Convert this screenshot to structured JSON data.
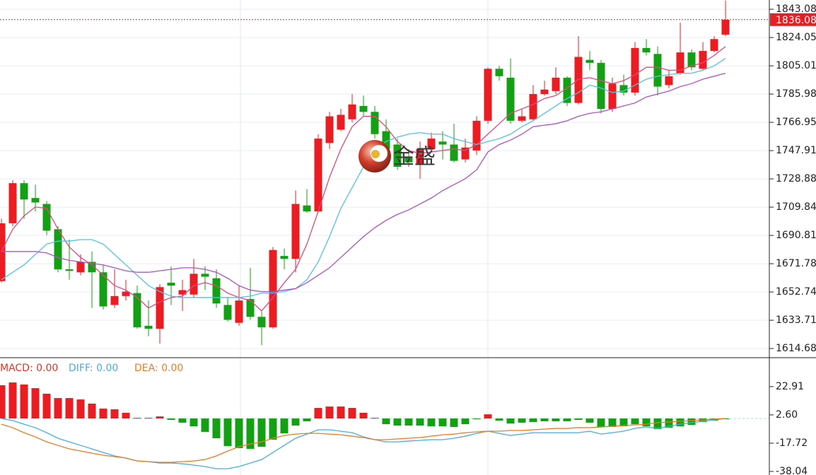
{
  "chart_data": [
    {
      "type": "candlestick",
      "ylim": [
        1609.0,
        1849.3
      ],
      "yticks": [
        1843.08,
        1824.05,
        1805.01,
        1785.98,
        1766.95,
        1747.91,
        1728.88,
        1709.84,
        1690.81,
        1671.78,
        1652.74,
        1633.71,
        1614.68
      ],
      "grid": true,
      "up_color": "#eb1c22",
      "down_color": "#14a014",
      "open": [
        1660,
        1699,
        1726,
        1716,
        1712,
        1695,
        1668,
        1666,
        1673,
        1666,
        1644,
        1650,
        1652,
        1630,
        1628,
        1659,
        1651,
        1651,
        1665,
        1662,
        1644,
        1632,
        1648,
        1636,
        1629,
        1677,
        1675,
        1711,
        1707,
        1753,
        1762,
        1769,
        1778,
        1774,
        1761,
        1752,
        1744,
        1739,
        1749,
        1754,
        1752,
        1742,
        1748,
        1768,
        1803,
        1797,
        1768,
        1769,
        1786,
        1788,
        1797,
        1780,
        1809,
        1807,
        1776,
        1792,
        1787,
        1817,
        1813,
        1792,
        1800,
        1814,
        1803,
        1815,
        1826
      ],
      "high": [
        1702,
        1728,
        1728,
        1725,
        1714,
        1697,
        1688,
        1678,
        1680,
        1671,
        1668,
        1661,
        1657,
        1647,
        1658,
        1670,
        1661,
        1675,
        1670,
        1668,
        1649,
        1657,
        1669,
        1640,
        1683,
        1682,
        1721,
        1722,
        1759,
        1774,
        1776,
        1786,
        1785,
        1778,
        1769,
        1756,
        1749,
        1754,
        1760,
        1761,
        1766,
        1756,
        1771,
        1804,
        1805,
        1810,
        1776,
        1792,
        1795,
        1804,
        1798,
        1825,
        1815,
        1809,
        1797,
        1799,
        1821,
        1823,
        1818,
        1802,
        1834,
        1816,
        1821,
        1825,
        1849
      ],
      "low": [
        1659,
        1697,
        1702,
        1707,
        1691,
        1666,
        1661,
        1664,
        1642,
        1641,
        1642,
        1647,
        1628,
        1623,
        1618,
        1644,
        1640,
        1649,
        1654,
        1642,
        1633,
        1630,
        1634,
        1617,
        1628,
        1668,
        1666,
        1706,
        1706,
        1749,
        1761,
        1767,
        1771,
        1756,
        1742,
        1735,
        1737,
        1729,
        1747,
        1742,
        1740,
        1740,
        1745,
        1766,
        1795,
        1766,
        1767,
        1768,
        1785,
        1786,
        1778,
        1779,
        1802,
        1773,
        1774,
        1785,
        1785,
        1812,
        1785,
        1790,
        1799,
        1802,
        1802,
        1814,
        1825
      ],
      "close": [
        1699,
        1726,
        1715,
        1713,
        1694,
        1668,
        1667,
        1673,
        1666,
        1643,
        1650,
        1653,
        1629,
        1628,
        1656,
        1657,
        1654,
        1665,
        1663,
        1645,
        1634,
        1647,
        1636,
        1629,
        1681,
        1675,
        1712,
        1707,
        1756,
        1771,
        1772,
        1779,
        1774,
        1759,
        1749,
        1737,
        1740,
        1749,
        1756,
        1752,
        1741,
        1750,
        1768,
        1803,
        1798,
        1768,
        1771,
        1786,
        1789,
        1797,
        1780,
        1811,
        1807,
        1776,
        1793,
        1787,
        1817,
        1814,
        1791,
        1798,
        1814,
        1804,
        1815,
        1823,
        1836
      ],
      "lines": [
        {
          "color": "#e2477d",
          "values": [
            1680,
            1695,
            1704,
            1710,
            1709,
            1695,
            1683,
            1676,
            1671,
            1664,
            1657,
            1654,
            1649,
            1642,
            1646,
            1649,
            1650,
            1657,
            1659,
            1657,
            1652,
            1649,
            1647,
            1640,
            1649,
            1659,
            1668,
            1685,
            1707,
            1730,
            1749,
            1764,
            1771,
            1771,
            1764,
            1754,
            1748,
            1746,
            1747,
            1748,
            1749,
            1748,
            1752,
            1759,
            1766,
            1773,
            1776,
            1779,
            1783,
            1785,
            1790,
            1796,
            1797,
            1795,
            1793,
            1795,
            1799,
            1804,
            1804,
            1802,
            1802,
            1805,
            1807,
            1812,
            1818
          ]
        },
        {
          "color": "#4fc4e4",
          "values": [
            1661,
            1666,
            1671,
            1678,
            1685,
            1687,
            1687,
            1688,
            1688,
            1685,
            1678,
            1671,
            1664,
            1657,
            1653,
            1650,
            1649,
            1649,
            1649,
            1649,
            1649,
            1649,
            1650,
            1652,
            1652,
            1653,
            1655,
            1661,
            1673,
            1690,
            1709,
            1723,
            1737,
            1749,
            1754,
            1757,
            1759,
            1760,
            1759,
            1759,
            1756,
            1754,
            1752,
            1754,
            1756,
            1759,
            1764,
            1768,
            1773,
            1778,
            1783,
            1787,
            1792,
            1790,
            1787,
            1788,
            1792,
            1796,
            1798,
            1799,
            1800,
            1800,
            1802,
            1805,
            1810
          ]
        },
        {
          "color": "#b150c6",
          "values": [
            1680,
            1680,
            1680,
            1680,
            1679,
            1676,
            1674,
            1673,
            1672,
            1671,
            1669,
            1667,
            1666,
            1666,
            1667,
            1668,
            1669,
            1669,
            1668,
            1666,
            1662,
            1657,
            1654,
            1653,
            1653,
            1654,
            1655,
            1659,
            1664,
            1669,
            1676,
            1683,
            1690,
            1696,
            1701,
            1705,
            1708,
            1712,
            1716,
            1721,
            1725,
            1729,
            1735,
            1747,
            1752,
            1755,
            1759,
            1764,
            1765,
            1766,
            1768,
            1771,
            1773,
            1774,
            1776,
            1778,
            1780,
            1784,
            1786,
            1788,
            1791,
            1793,
            1796,
            1798,
            1800
          ]
        }
      ],
      "last_price": 1836.08,
      "watermark": "金盛"
    },
    {
      "type": "macd",
      "ylim": [
        -40.6,
        43.2
      ],
      "yticks": [
        22.91,
        {
          "value": 2.6,
          "label": "2.60"
        },
        -17.72,
        -38.04
      ],
      "histogram": {
        "name": "MACD: 0.00",
        "color": "#e8321e",
        "values": [
          23.9,
          25.9,
          24.4,
          21.8,
          17.8,
          14.7,
          14.7,
          13.7,
          10.7,
          7.1,
          6.6,
          4.1,
          0.5,
          0.5,
          1.5,
          -1.0,
          -3.0,
          -5.6,
          -9.6,
          -14.2,
          -19.8,
          -21.3,
          -21.8,
          -20.3,
          -15.2,
          -10.7,
          -5.1,
          -2.0,
          7.6,
          8.6,
          8.6,
          7.6,
          4.1,
          0.5,
          -4.1,
          -5.1,
          -5.1,
          -5.1,
          -5.6,
          -5.6,
          -6.1,
          -4.1,
          -0.5,
          3.0,
          -1.5,
          -3.6,
          -3.0,
          -2.5,
          -2.0,
          -2.0,
          -2.0,
          -1.0,
          -3.0,
          -6.1,
          -6.1,
          -5.6,
          -4.1,
          -5.6,
          -7.6,
          -6.6,
          -5.6,
          -4.6,
          -2.5,
          -1.5,
          -0.5
        ]
      },
      "series": [
        {
          "name": "DIFF: 0.00",
          "color": "#45aee6",
          "values": [
            0,
            -1.5,
            -4.1,
            -6.6,
            -10.2,
            -14.2,
            -16.8,
            -19.3,
            -21.8,
            -24.4,
            -26.9,
            -28.4,
            -30.5,
            -31.0,
            -32.0,
            -32.0,
            -32.5,
            -33.5,
            -34.5,
            -36.1,
            -36.1,
            -34.5,
            -32.0,
            -29.5,
            -24.4,
            -19.3,
            -14.2,
            -11.2,
            -8.1,
            -8.1,
            -9.1,
            -10.2,
            -13.2,
            -15.2,
            -16.8,
            -16.8,
            -16.2,
            -15.7,
            -15.2,
            -15.2,
            -14.2,
            -12.7,
            -10.7,
            -9.1,
            -10.7,
            -12.2,
            -11.2,
            -10.2,
            -10.2,
            -10.2,
            -10.2,
            -10.2,
            -9.1,
            -11.2,
            -10.2,
            -9.1,
            -7.1,
            -6.1,
            -7.1,
            -5.6,
            -4.1,
            -3.0,
            -2.0,
            -1.0,
            0
          ]
        },
        {
          "name": "DEA: 0.00",
          "color": "#f07a1c",
          "values": [
            -4.1,
            -6.6,
            -10.2,
            -13.2,
            -16.8,
            -19.3,
            -21.8,
            -23.4,
            -24.9,
            -26.4,
            -27.4,
            -28.4,
            -30.5,
            -31.0,
            -31.5,
            -31.5,
            -31.0,
            -30.5,
            -29.5,
            -26.9,
            -23.4,
            -20.3,
            -18.3,
            -16.8,
            -14.2,
            -12.2,
            -11.2,
            -10.7,
            -10.7,
            -11.2,
            -11.7,
            -12.7,
            -13.7,
            -15.2,
            -15.2,
            -14.7,
            -14.2,
            -13.7,
            -12.7,
            -11.7,
            -11.2,
            -10.2,
            -9.6,
            -9.1,
            -9.1,
            -8.6,
            -8.6,
            -8.1,
            -7.6,
            -7.1,
            -7.1,
            -6.6,
            -6.6,
            -6.1,
            -5.6,
            -5.1,
            -4.6,
            -4.1,
            -3.0,
            -2.5,
            -2.0,
            -1.5,
            -1.0,
            -0.5,
            0
          ]
        }
      ],
      "up_color": "#eb1c22",
      "down_color": "#14a014"
    }
  ]
}
